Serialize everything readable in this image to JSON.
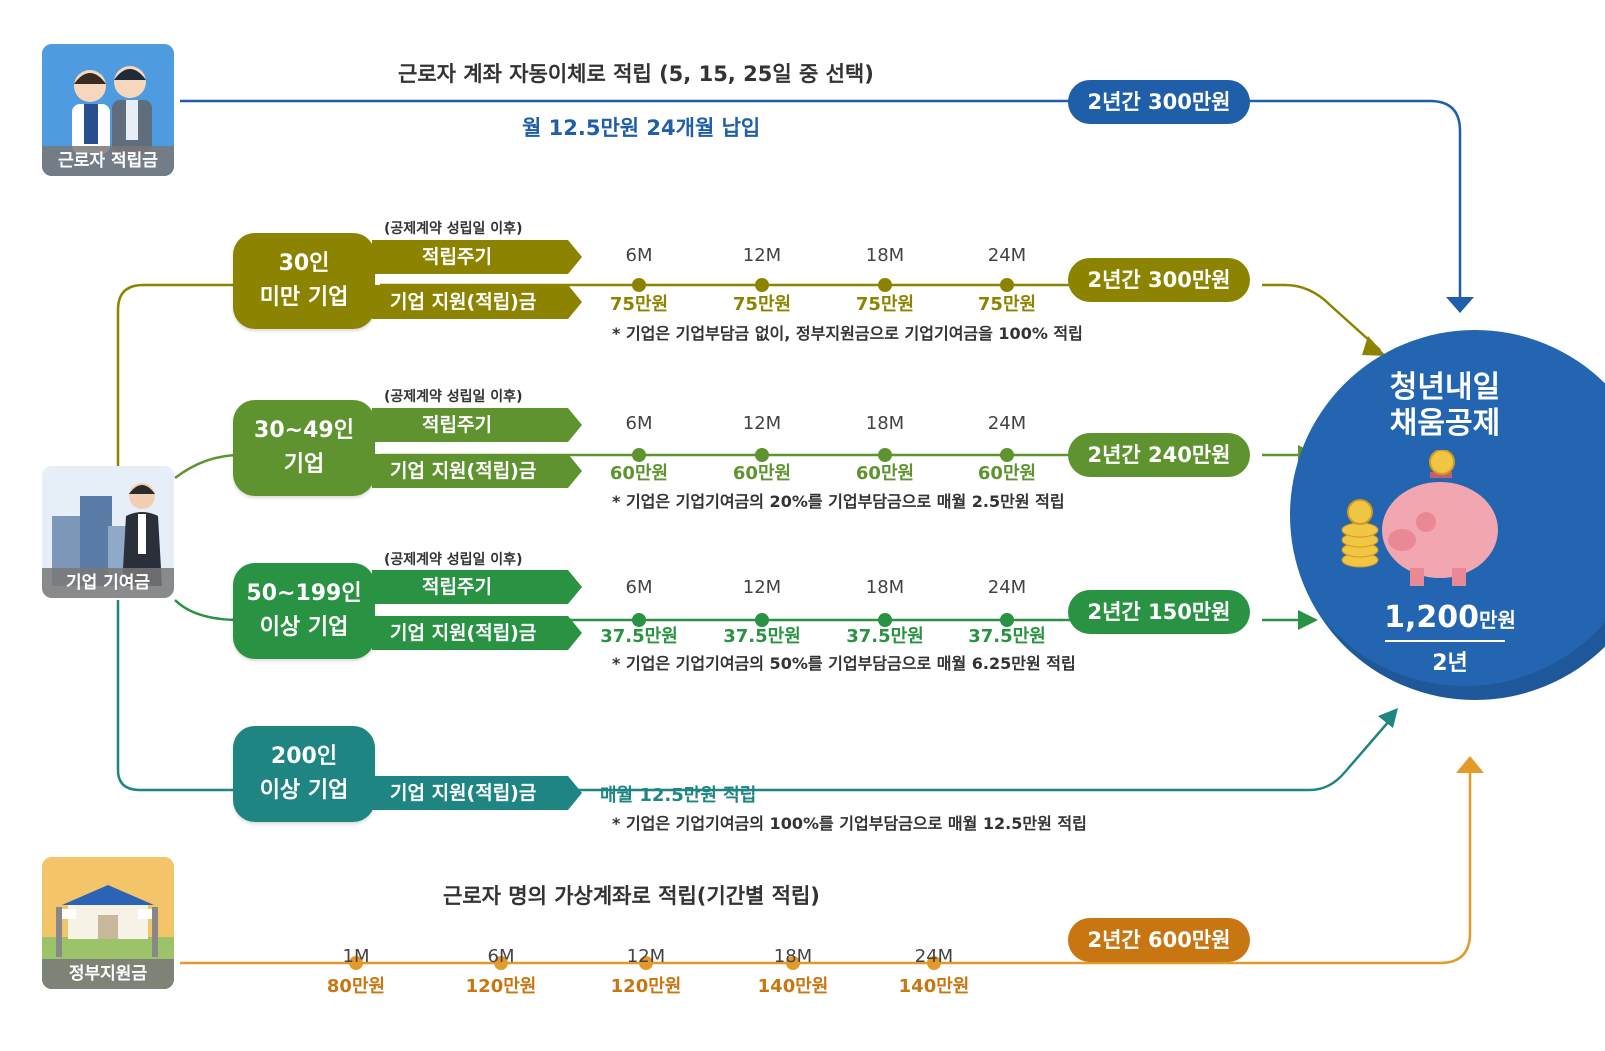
{
  "worker": {
    "card_label": "근로자 적립금",
    "title": "근로자 계좌 자동이체로 적립 (5, 15, 25일 중 선택)",
    "subtitle": "월 12.5만원 24개월 납입",
    "total": "2년간 300만원"
  },
  "company": {
    "card_label": "기업 기여금",
    "common": {
      "cycle_note": "(공제계약 성립일 이후)",
      "cycle_label": "적립주기",
      "support_label": "기업 지원(적립)금",
      "months": [
        "6M",
        "12M",
        "18M",
        "24M"
      ]
    },
    "tiers": [
      {
        "line1": "30인",
        "line2": "미만 기업",
        "amounts": [
          "75만원",
          "75만원",
          "75만원",
          "75만원"
        ],
        "total": "2년간 300만원",
        "note": "* 기업은 기업부담금 없이, 정부지원금으로 기업기여금을 100% 적립"
      },
      {
        "line1": "30~49인",
        "line2": "기업",
        "amounts": [
          "60만원",
          "60만원",
          "60만원",
          "60만원"
        ],
        "total": "2년간 240만원",
        "note": "* 기업은 기업기여금의 20%를 기업부담금으로 매월 2.5만원 적립"
      },
      {
        "line1": "50~199인",
        "line2": "이상 기업",
        "amounts": [
          "37.5만원",
          "37.5만원",
          "37.5만원",
          "37.5만원"
        ],
        "total": "2년간 150만원",
        "note": "* 기업은 기업기여금의 50%를 기업부담금으로 매월 6.25만원 적립"
      },
      {
        "line1": "200인",
        "line2": "이상 기업",
        "monthly": "매월 12.5만원 적립",
        "note": "* 기업은 기업기여금의 100%를 기업부담금으로 매월 12.5만원 적립"
      }
    ]
  },
  "government": {
    "card_label": "정부지원금",
    "title": "근로자 명의 가상계좌로 적립(기간별 적립)",
    "months": [
      "1M",
      "6M",
      "12M",
      "18M",
      "24M"
    ],
    "amounts": [
      "80만원",
      "120만원",
      "120만원",
      "140만원",
      "140만원"
    ],
    "total": "2년간 600만원"
  },
  "result": {
    "title_line1": "청년내일",
    "title_line2": "채움공제",
    "amount_number": "1,200",
    "amount_unit": "만원",
    "period": "2년"
  },
  "colors": {
    "worker": "#1f5ea8",
    "tier1": "#8c8400",
    "tier2": "#5e932f",
    "tier3": "#2a9243",
    "tier4": "#1f8583",
    "government": "#e49a2b",
    "gov_pill": "#c87611",
    "result_bg": "#2365b0"
  }
}
